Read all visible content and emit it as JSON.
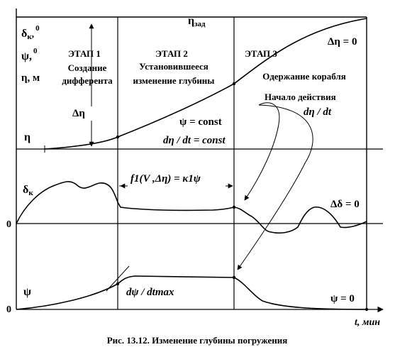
{
  "caption": "Рис. 13.12. Изменение глубины погружения",
  "top_label": "η",
  "top_label_sub": "зад",
  "y_axis_labels": {
    "delta_k": "δ",
    "delta_k_sub": "к",
    "delta_k_tail": ",",
    "delta_k_sup": "0",
    "psi": "ψ,",
    "psi_sup": "0",
    "eta": "η, м"
  },
  "stages": [
    {
      "title": "ЭТАП 1",
      "line1": "Создание",
      "line2": "дифферента"
    },
    {
      "title": "ЭТАП 2",
      "line1": "Установившееся",
      "line2": "изменение глубины"
    },
    {
      "title": "ЭТАП 3",
      "line1": "Одержание корабля",
      "line2": ""
    }
  ],
  "annotations": {
    "delta_eta_top": "Δη = 0",
    "delta_eta": "Δη",
    "psi_const": "ψ = const",
    "deta_dt_const": "dη / dt = const",
    "start_action": "Начало действия",
    "deta_dt": "dη / dt",
    "f1_formula": "f1(V ,Δη) = κ1ψ",
    "delta_delta_zero": "Δδ = 0",
    "dpsi_dtmax": "dψ / dtmax",
    "psi_zero": "ψ = 0"
  },
  "row_labels": {
    "eta": "η",
    "delta_k": "δ",
    "delta_k_sub": "к",
    "zero_mid": "0",
    "psi": "ψ",
    "zero_bottom": "0"
  },
  "x_axis_label": "t, мин"
}
